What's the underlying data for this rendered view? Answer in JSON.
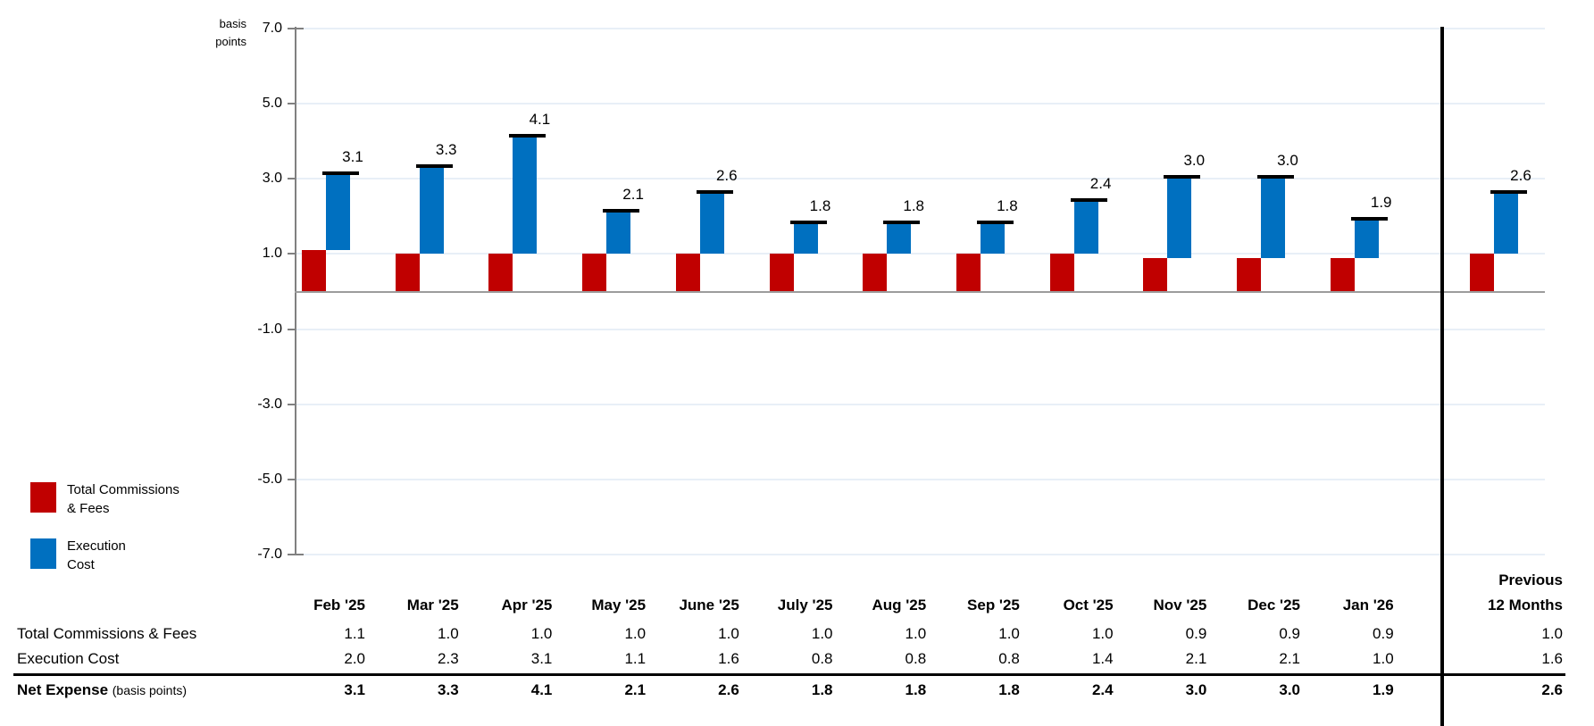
{
  "chart_data": {
    "type": "bar",
    "stacked": true,
    "unit_label_lines": [
      "basis",
      "points"
    ],
    "categories": [
      "Feb '25",
      "Mar '25",
      "Apr '25",
      "May '25",
      "June '25",
      "July '25",
      "Aug '25",
      "Sep '25",
      "Oct '25",
      "Nov '25",
      "Dec '25",
      "Jan '26"
    ],
    "summary_column": {
      "label_lines": [
        "Previous",
        "12 Months"
      ]
    },
    "series": [
      {
        "name": "Total Commissions & Fees",
        "color": "#C00000",
        "values": [
          1.1,
          1.0,
          1.0,
          1.0,
          1.0,
          1.0,
          1.0,
          1.0,
          1.0,
          0.9,
          0.9,
          0.9
        ],
        "previous_12_months": 1.0
      },
      {
        "name": "Execution Cost",
        "color": "#0070C0",
        "values": [
          2.0,
          2.3,
          3.1,
          1.1,
          1.6,
          0.8,
          0.8,
          0.8,
          1.4,
          2.1,
          2.1,
          1.0
        ],
        "previous_12_months": 1.6
      }
    ],
    "totals": {
      "name": "Net Expense",
      "name_suffix": "(basis points)",
      "values": [
        3.1,
        3.3,
        4.1,
        2.1,
        2.6,
        1.8,
        1.8,
        1.8,
        2.4,
        3.0,
        3.0,
        1.9
      ],
      "previous_12_months": 2.6
    },
    "yticks": [
      7.0,
      5.0,
      3.0,
      1.0,
      -1.0,
      -3.0,
      -5.0,
      -7.0
    ],
    "ylim": [
      -7.0,
      7.0
    ],
    "grid": true,
    "legend_position": "bottom-left"
  },
  "legend": {
    "items": [
      {
        "label_lines": [
          "Total Commissions",
          "& Fees"
        ],
        "color": "#C00000"
      },
      {
        "label_lines": [
          "Execution",
          "Cost"
        ],
        "color": "#0070C0"
      }
    ]
  },
  "colors": {
    "commissions_red": "#C00000",
    "execution_blue": "#0070C0",
    "gridline": "#E8EFF7",
    "zero_line": "#9C9C9C",
    "axis": "#808080",
    "separator_and_marker": "#000000"
  }
}
